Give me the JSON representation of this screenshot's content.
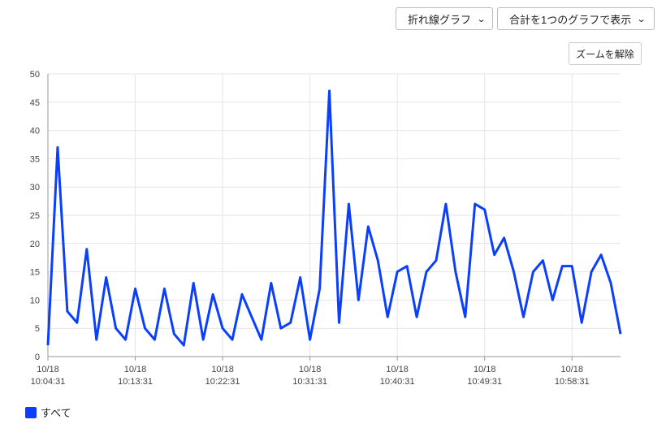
{
  "controls": {
    "chart_type_select": "折れ線グラフ",
    "display_mode_select": "合計を1つのグラフで表示",
    "reset_zoom_button": "ズームを解除"
  },
  "colors": {
    "series": "#0a3fff",
    "grid": "#e4e4e4",
    "axis": "#999999"
  },
  "chart_data": {
    "type": "line",
    "title": "",
    "xlabel": "",
    "ylabel": "",
    "ylim": [
      0,
      50
    ],
    "yticks": [
      0,
      5,
      10,
      15,
      20,
      25,
      30,
      35,
      40,
      45,
      50
    ],
    "grid": true,
    "legend_position": "bottom-left",
    "x_start": "10:04:31",
    "x_end": "11:03:31",
    "xticks": [
      {
        "x": "10:04:31",
        "label": [
          "10/18",
          "10:04:31"
        ]
      },
      {
        "x": "10:13:31",
        "label": [
          "10/18",
          "10:13:31"
        ]
      },
      {
        "x": "10:22:31",
        "label": [
          "10/18",
          "10:22:31"
        ]
      },
      {
        "x": "10:31:31",
        "label": [
          "10/18",
          "10:31:31"
        ]
      },
      {
        "x": "10:40:31",
        "label": [
          "10/18",
          "10:40:31"
        ]
      },
      {
        "x": "10:49:31",
        "label": [
          "10/18",
          "10:49:31"
        ]
      },
      {
        "x": "10:58:31",
        "label": [
          "10/18",
          "10:58:31"
        ]
      }
    ],
    "series": [
      {
        "name": "すべて",
        "color": "#0a3fff",
        "x": [
          "10:04:31",
          "10:05:31",
          "10:06:31",
          "10:07:31",
          "10:08:31",
          "10:09:31",
          "10:10:31",
          "10:11:31",
          "10:12:31",
          "10:13:31",
          "10:14:31",
          "10:15:31",
          "10:16:31",
          "10:17:31",
          "10:18:31",
          "10:19:31",
          "10:20:31",
          "10:21:31",
          "10:22:31",
          "10:23:31",
          "10:24:31",
          "10:25:31",
          "10:26:31",
          "10:27:31",
          "10:28:31",
          "10:29:31",
          "10:30:31",
          "10:31:31",
          "10:32:31",
          "10:33:31",
          "10:34:31",
          "10:35:31",
          "10:36:31",
          "10:37:31",
          "10:38:31",
          "10:39:31",
          "10:40:31",
          "10:41:31",
          "10:42:31",
          "10:43:31",
          "10:44:31",
          "10:45:31",
          "10:46:31",
          "10:47:31",
          "10:48:31",
          "10:49:31",
          "10:50:31",
          "10:51:31",
          "10:52:31",
          "10:53:31",
          "10:54:31",
          "10:55:31",
          "10:56:31",
          "10:57:31",
          "10:58:31",
          "10:59:31",
          "11:00:31",
          "11:01:31",
          "11:02:31",
          "11:03:31"
        ],
        "values": [
          2,
          37,
          8,
          6,
          19,
          3,
          14,
          5,
          3,
          12,
          5,
          3,
          12,
          4,
          2,
          13,
          3,
          11,
          5,
          3,
          11,
          7,
          3,
          13,
          5,
          6,
          14,
          3,
          12,
          47,
          6,
          27,
          10,
          23,
          17,
          7,
          15,
          16,
          7,
          15,
          17,
          27,
          15,
          7,
          27,
          26,
          18,
          21,
          15,
          7,
          15,
          17,
          10,
          16,
          16,
          6,
          15,
          18,
          13,
          4
        ]
      }
    ]
  }
}
